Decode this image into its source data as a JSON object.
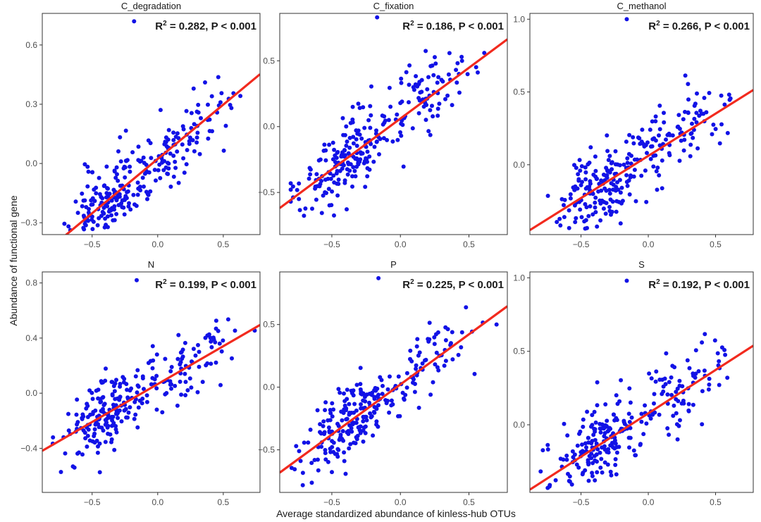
{
  "figure": {
    "ylabel": "Abundance of functional gene",
    "xlabel": "Average standardized abundance of kinless-hub OTUs"
  },
  "colors": {
    "point": "#1212e6",
    "fit_line": "#f22a1e",
    "frame": "#333333",
    "tick": "#4d4d4d"
  },
  "chart_data": [
    {
      "type": "scatter",
      "title": "C_degradation",
      "stat": {
        "r2": "0.282",
        "p": "P < 0.001"
      },
      "xlim": [
        -0.88,
        0.78
      ],
      "ylim": [
        -0.36,
        0.76
      ],
      "xticks": [
        -0.5,
        0.0,
        0.5
      ],
      "xtick_labels": [
        "−0.5",
        "0.0",
        "0.5"
      ],
      "yticks": [
        -0.3,
        0.0,
        0.3,
        0.6
      ],
      "ytick_labels": [
        "−0.3",
        "0.0",
        "0.3",
        "0.6"
      ],
      "fit": {
        "intercept": 0.023,
        "slope": 0.55
      },
      "highlight_point": [
        -0.18,
        0.72
      ],
      "seed": 11
    },
    {
      "type": "scatter",
      "title": "C_fixation",
      "stat": {
        "r2": "0.186",
        "p": "P < 0.001"
      },
      "xlim": [
        -0.88,
        0.78
      ],
      "ylim": [
        -0.82,
        0.86
      ],
      "xticks": [
        -0.5,
        0.0,
        0.5
      ],
      "xtick_labels": [
        "−0.5",
        "0.0",
        "0.5"
      ],
      "yticks": [
        -0.5,
        0.0,
        0.5
      ],
      "ytick_labels": [
        "−0.5",
        "0.0",
        "0.5"
      ],
      "fit": {
        "intercept": 0.061,
        "slope": 0.772
      },
      "highlight_point": [
        -0.17,
        0.83
      ],
      "seed": 23
    },
    {
      "type": "scatter",
      "title": "C_methanol",
      "stat": {
        "r2": "0.266",
        "p": "P < 0.001"
      },
      "xlim": [
        -0.88,
        0.78
      ],
      "ylim": [
        -0.48,
        1.04
      ],
      "xticks": [
        -0.5,
        0.0,
        0.5
      ],
      "xtick_labels": [
        "−0.5",
        "0.0",
        "0.5"
      ],
      "yticks": [
        0.0,
        0.5,
        1.0
      ],
      "ytick_labels": [
        "0.0",
        "0.5",
        "1.0"
      ],
      "fit": {
        "intercept": 0.061,
        "slope": 0.58
      },
      "highlight_point": [
        -0.16,
        1.0
      ],
      "seed": 37
    },
    {
      "type": "scatter",
      "title": "N",
      "stat": {
        "r2": "0.199",
        "p": "P < 0.001"
      },
      "xlim": [
        -0.88,
        0.78
      ],
      "ylim": [
        -0.72,
        0.88
      ],
      "xticks": [
        -0.5,
        0.0,
        0.5
      ],
      "xtick_labels": [
        "−0.5",
        "0.0",
        "0.5"
      ],
      "yticks": [
        -0.4,
        0.0,
        0.4,
        0.8
      ],
      "ytick_labels": [
        "−0.4",
        "0.0",
        "0.4",
        "0.8"
      ],
      "fit": {
        "intercept": 0.066,
        "slope": 0.55
      },
      "highlight_point": [
        -0.16,
        0.82
      ],
      "seed": 41
    },
    {
      "type": "scatter",
      "title": "P",
      "stat": {
        "r2": "0.225",
        "p": "P < 0.001"
      },
      "xlim": [
        -0.88,
        0.78
      ],
      "ylim": [
        -0.84,
        0.92
      ],
      "xticks": [
        -0.5,
        0.0,
        0.5
      ],
      "xtick_labels": [
        "−0.5",
        "0.0",
        "0.5"
      ],
      "yticks": [
        -0.5,
        0.0,
        0.5
      ],
      "ytick_labels": [
        "−0.5",
        "0.0",
        "0.5"
      ],
      "fit": {
        "intercept": 0.022,
        "slope": 0.8
      },
      "highlight_point": [
        -0.16,
        0.87
      ],
      "seed": 53
    },
    {
      "type": "scatter",
      "title": "S",
      "stat": {
        "r2": "0.192",
        "p": "P < 0.001"
      },
      "xlim": [
        -0.88,
        0.78
      ],
      "ylim": [
        -0.46,
        1.04
      ],
      "xticks": [
        -0.5,
        0.0,
        0.5
      ],
      "xtick_labels": [
        "−0.5",
        "0.0",
        "0.5"
      ],
      "yticks": [
        0.0,
        0.5,
        1.0
      ],
      "ytick_labels": [
        "0.0",
        "0.5",
        "1.0"
      ],
      "fit": {
        "intercept": 0.078,
        "slope": 0.59
      },
      "highlight_point": [
        -0.16,
        0.98
      ],
      "seed": 67
    }
  ]
}
